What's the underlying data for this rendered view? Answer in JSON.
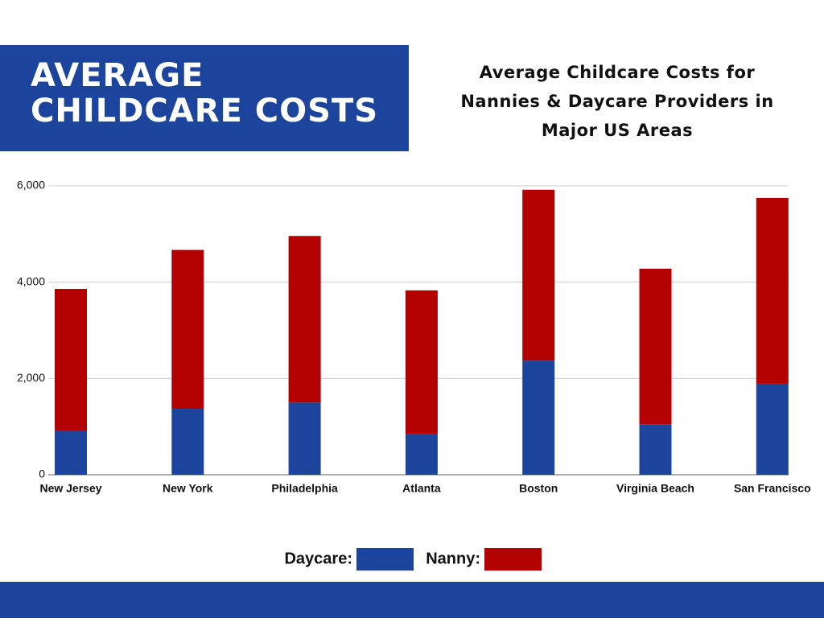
{
  "chart_data": {
    "type": "stacked_bar",
    "title": "AVERAGE CHILDCARE COSTS",
    "subtitle": "Average Childcare Costs for Nannies & Daycare Providers in Major US Areas",
    "categories": [
      "New Jersey",
      "New York",
      "Philadelphia",
      "Atlanta",
      "Boston",
      "Virginia Beach",
      "San Francisco"
    ],
    "series": [
      {
        "name": "Daycare:",
        "color": "#1c449c",
        "values": [
          920,
          1370,
          1500,
          850,
          2370,
          1050,
          1890
        ]
      },
      {
        "name": "Nanny:",
        "color": "#b30000",
        "values": [
          2940,
          3300,
          3460,
          2980,
          3550,
          3230,
          3860
        ]
      }
    ],
    "ylim": [
      0,
      6000
    ],
    "yticks": [
      0,
      {
        "value": 2000,
        "label": "2,000"
      },
      {
        "value": 4000,
        "label": "4,000"
      },
      {
        "value": 6000,
        "label": "6,000"
      }
    ],
    "grid": true
  }
}
